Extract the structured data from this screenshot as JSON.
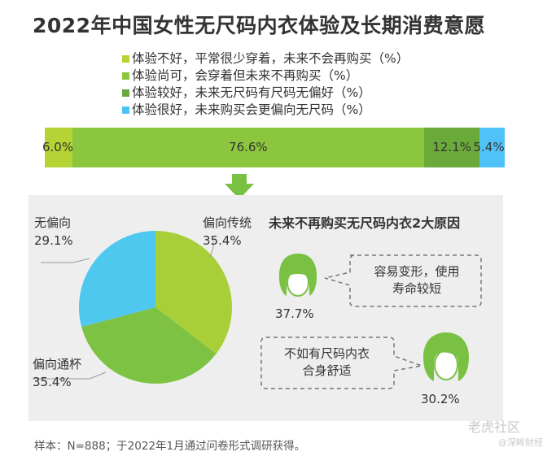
{
  "title": "2022年中国女性无尺码内衣体验及长期消费意愿",
  "chart_data": [
    {
      "type": "bar",
      "orientation": "horizontal-stacked",
      "series": [
        {
          "name": "体验不好，平常很少穿着，未来不会再购买（%）",
          "value": 6.0,
          "label": "6.0%",
          "color": "#b5d334"
        },
        {
          "name": "体验尚可，会穿着但未来不再购买（%）",
          "value": 76.6,
          "label": "76.6%",
          "color": "#8cc63f"
        },
        {
          "name": "体验较好，未来无尺码有尺码无偏好（%）",
          "value": 12.1,
          "label": "12.1%",
          "color": "#6aaa3a"
        },
        {
          "name": "体验很好，未来购买会更偏向无尺码（%）",
          "value": 5.4,
          "label": "5.4%",
          "color": "#4fc3f7"
        }
      ]
    },
    {
      "type": "pie",
      "slices": [
        {
          "name": "偏向传统",
          "value": 35.4,
          "label": "35.4%",
          "color": "#a9cf38"
        },
        {
          "name": "偏向通杯",
          "value": 35.4,
          "label": "35.4%",
          "color": "#7dc242"
        },
        {
          "name": "无偏向",
          "value": 29.1,
          "label": "29.1%",
          "color": "#4fc8f0"
        }
      ]
    }
  ],
  "reasons": {
    "title": "未来不再购买无尺码内衣2大原因",
    "items": [
      {
        "text_line1": "容易变形，使用",
        "text_line2": "寿命较短",
        "pct": "37.7%"
      },
      {
        "text_line1": "不如有尺码内衣",
        "text_line2": "合身舒适",
        "pct": "30.2%"
      }
    ]
  },
  "footer": "样本：N=888；于2022年1月通过问卷形式调研获得。",
  "watermark": "老虎社区",
  "watermark_sub": "@深眸财经",
  "colors": {
    "face_color": "#7ac143",
    "arrow_color": "#7ac143",
    "panel_bg": "#eeeeee"
  }
}
